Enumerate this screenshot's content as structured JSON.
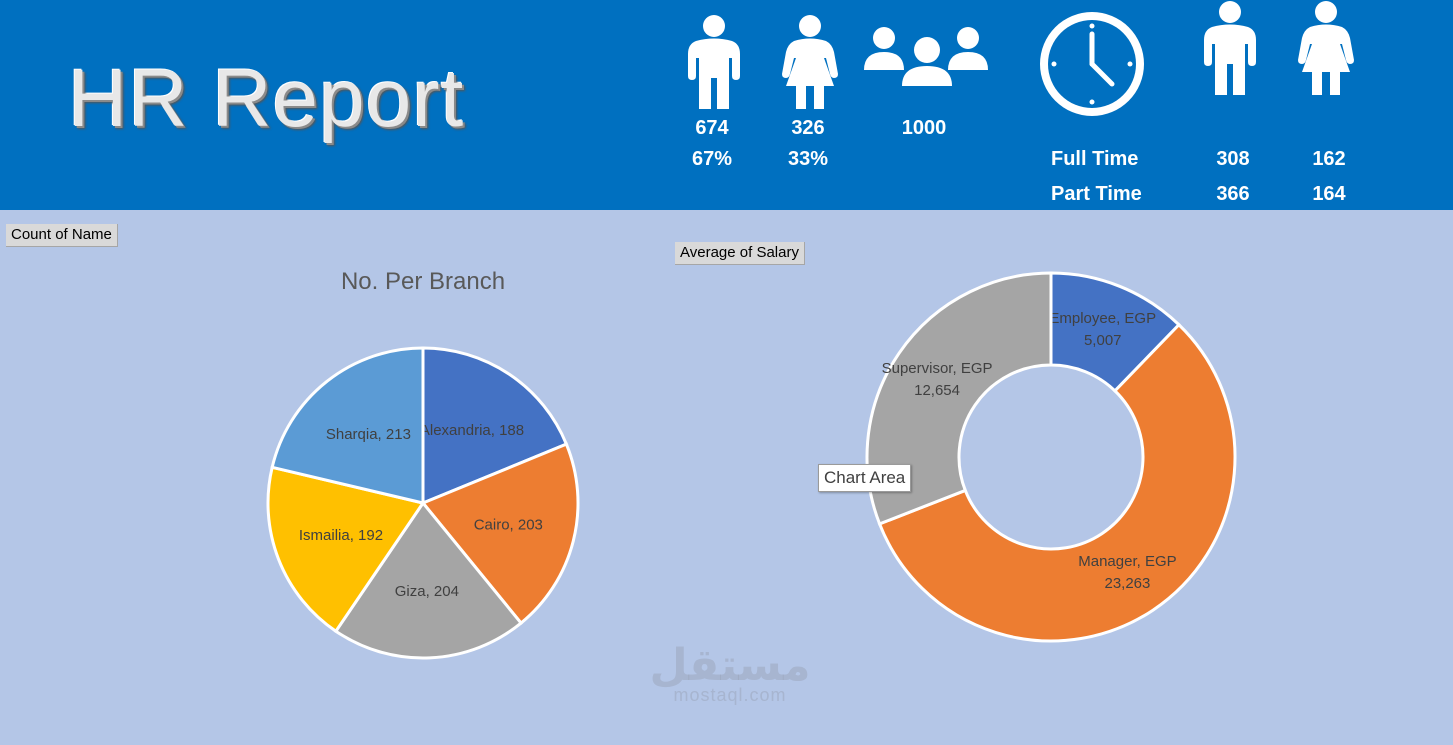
{
  "header": {
    "title": "HR Report",
    "male_count": "674",
    "male_pct": "67%",
    "female_count": "326",
    "female_pct": "33%",
    "total_count": "1000",
    "full_time_label": "Full Time",
    "part_time_label": "Part Time",
    "full_time_male": "308",
    "full_time_female": "162",
    "part_time_male": "366",
    "part_time_female": "164",
    "icons": [
      "male-icon",
      "female-icon",
      "group-icon",
      "clock-icon",
      "male-icon",
      "female-icon"
    ]
  },
  "buttons": {
    "count_of_name": "Count of Name",
    "average_of_salary": "Average of Salary"
  },
  "tooltip": "Chart Area",
  "watermark": {
    "logo_text": "مستقل",
    "url": "mostaql.com"
  },
  "chart_data": [
    {
      "type": "pie",
      "title": "No. Per Branch",
      "categories": [
        "Alexandria",
        "Cairo",
        "Giza",
        "Ismailia",
        "Sharqia"
      ],
      "values": [
        188,
        203,
        204,
        192,
        213
      ],
      "labels": [
        "Alexandria, 188",
        "Cairo, 203",
        "Giza, 204",
        "Ismailia, 192",
        "Sharqia, 213"
      ],
      "colors": [
        "#4472C4",
        "#ED7D31",
        "#A5A5A5",
        "#FFC000",
        "#5B9BD5"
      ]
    },
    {
      "type": "pie",
      "variant": "doughnut",
      "title": "",
      "categories": [
        "Employee",
        "Manager",
        "Supervisor"
      ],
      "values": [
        5007,
        23263,
        12654
      ],
      "labels": [
        [
          "Employee, EGP",
          "5,007"
        ],
        [
          "Manager, EGP",
          "23,263"
        ],
        [
          "Supervisor, EGP",
          "12,654"
        ]
      ],
      "colors": [
        "#4472C4",
        "#ED7D31",
        "#A5A5A5"
      ]
    }
  ]
}
